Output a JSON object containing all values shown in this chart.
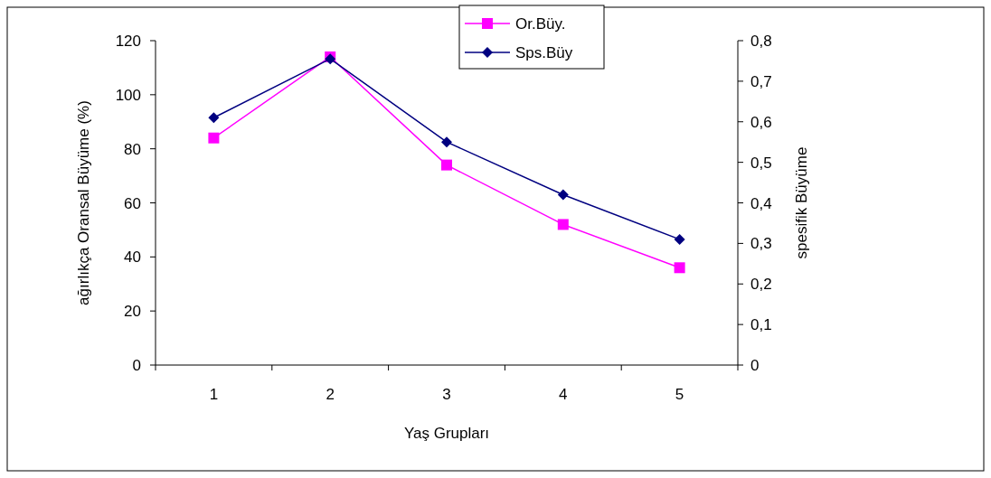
{
  "chart_data": {
    "type": "line",
    "xlabel": "Yaş Grupları",
    "ylabel": "ağırlıkça Oransal Büyüme (%)",
    "y2label": "spesifik Büyüme",
    "categories": [
      "1",
      "2",
      "3",
      "4",
      "5"
    ],
    "series": [
      {
        "name": "Or.Büy.",
        "color": "#ff00ff",
        "marker": "square",
        "values": [
          84,
          114,
          74,
          52,
          36
        ]
      },
      {
        "name": "Sps.Büy",
        "color": "#000080",
        "marker": "diamond",
        "axis": "y2",
        "values": [
          0.61,
          0.755,
          0.55,
          0.42,
          0.31
        ]
      }
    ],
    "ylim": [
      0,
      120
    ],
    "yticks": [
      0,
      20,
      40,
      60,
      80,
      100,
      120
    ],
    "y2lim": [
      0,
      0.8
    ],
    "y2ticks": [
      {
        "value": 0,
        "label": "0"
      },
      {
        "value": 0.1,
        "label": "0,1"
      },
      {
        "value": 0.2,
        "label": "0,2"
      },
      {
        "value": 0.3,
        "label": "0,3"
      },
      {
        "value": 0.4,
        "label": "0,4"
      },
      {
        "value": 0.5,
        "label": "0,5"
      },
      {
        "value": 0.6,
        "label": "0,6"
      },
      {
        "value": 0.7,
        "label": "0,7"
      },
      {
        "value": 0.8,
        "label": "0,8"
      }
    ],
    "grid": false,
    "legend": "top",
    "line_style": "solid"
  }
}
